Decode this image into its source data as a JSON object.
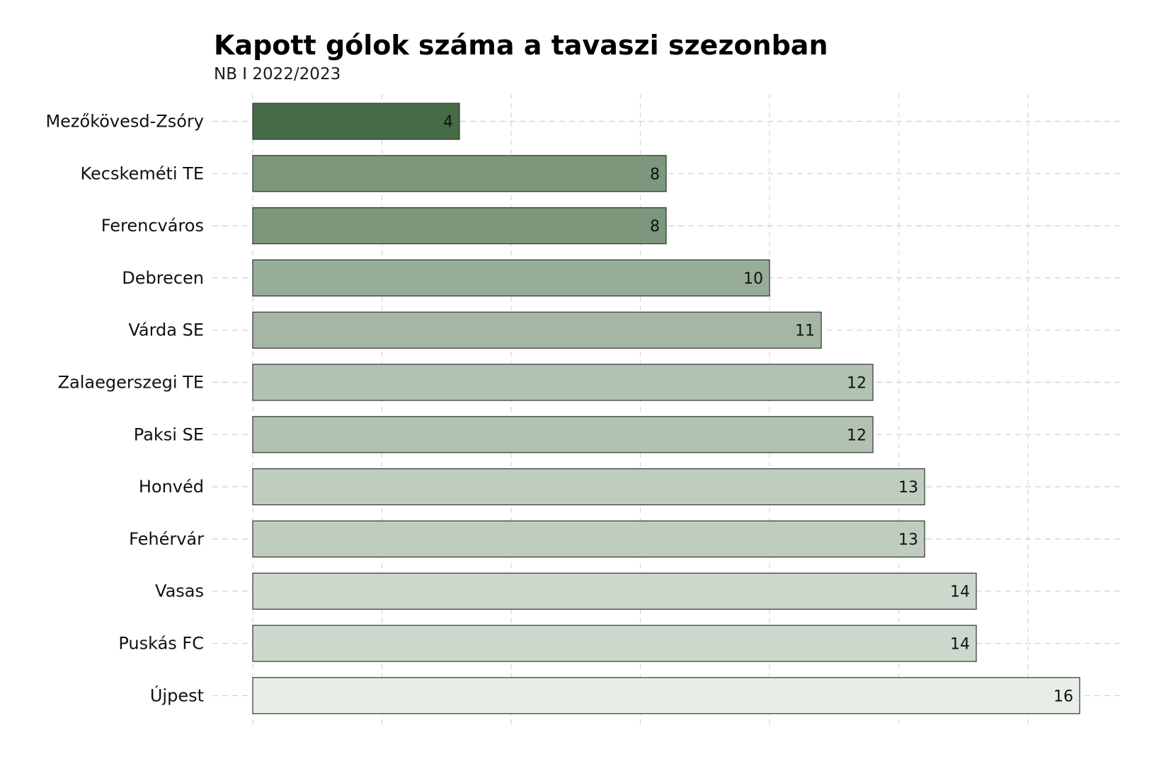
{
  "chart_data": {
    "type": "bar",
    "orientation": "horizontal",
    "title": "Kapott gólok száma a tavaszi szezonban",
    "subtitle": "NB I 2022/2023",
    "categories": [
      "Mezőkövesd-Zsóry",
      "Kecskeméti TE",
      "Ferencváros",
      "Debrecen",
      "Várda SE",
      "Zalaegerszegi TE",
      "Paksi SE",
      "Honvéd",
      "Fehérvár",
      "Vasas",
      "Puskás FC",
      "Újpest"
    ],
    "values": [
      4,
      8,
      8,
      10,
      11,
      12,
      12,
      13,
      13,
      14,
      14,
      16
    ],
    "value_labels": [
      "4",
      "8",
      "8",
      "10",
      "11",
      "12",
      "12",
      "13",
      "13",
      "14",
      "14",
      "16"
    ],
    "xlim": [
      0,
      17
    ],
    "grid": true,
    "data_labels": "inside-end",
    "color_low": "#e7eee7",
    "color_high": "#466b47",
    "bar_outline": "#333333"
  }
}
